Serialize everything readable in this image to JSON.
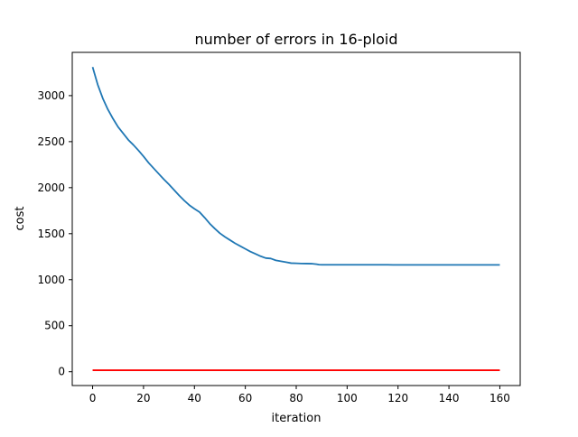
{
  "chart_data": {
    "type": "line",
    "title": "number of errors in 16-ploid",
    "xlabel": "iteration",
    "ylabel": "cost",
    "xlim": [
      -8,
      168
    ],
    "ylim": [
      -150,
      3470
    ],
    "xticks": [
      0,
      20,
      40,
      60,
      80,
      100,
      120,
      140,
      160
    ],
    "yticks": [
      0,
      500,
      1000,
      1500,
      2000,
      2500,
      3000
    ],
    "grid": false,
    "legend": "none",
    "series": [
      {
        "color": "#1f77b4",
        "x": [
          0,
          2,
          4,
          6,
          8,
          10,
          12,
          14,
          16,
          18,
          20,
          22,
          24,
          26,
          28,
          30,
          32,
          34,
          36,
          38,
          40,
          42,
          44,
          46,
          48,
          50,
          52,
          54,
          56,
          58,
          60,
          62,
          64,
          66,
          68,
          70,
          72,
          74,
          76,
          78,
          80,
          82,
          84,
          86,
          88,
          89,
          90,
          100,
          110,
          116,
          118,
          120,
          130,
          140,
          150,
          160
        ],
        "y": [
          3310,
          3120,
          2970,
          2850,
          2750,
          2660,
          2590,
          2520,
          2465,
          2405,
          2340,
          2270,
          2210,
          2150,
          2090,
          2035,
          1975,
          1915,
          1860,
          1810,
          1770,
          1735,
          1675,
          1610,
          1555,
          1505,
          1465,
          1430,
          1395,
          1365,
          1335,
          1305,
          1280,
          1255,
          1235,
          1230,
          1210,
          1200,
          1190,
          1180,
          1178,
          1176,
          1175,
          1174,
          1168,
          1163,
          1162,
          1162,
          1162,
          1162,
          1161,
          1161,
          1161,
          1161,
          1161,
          1161
        ]
      },
      {
        "color": "#ff0000",
        "x": [
          0,
          160
        ],
        "y": [
          16,
          16
        ]
      }
    ]
  }
}
